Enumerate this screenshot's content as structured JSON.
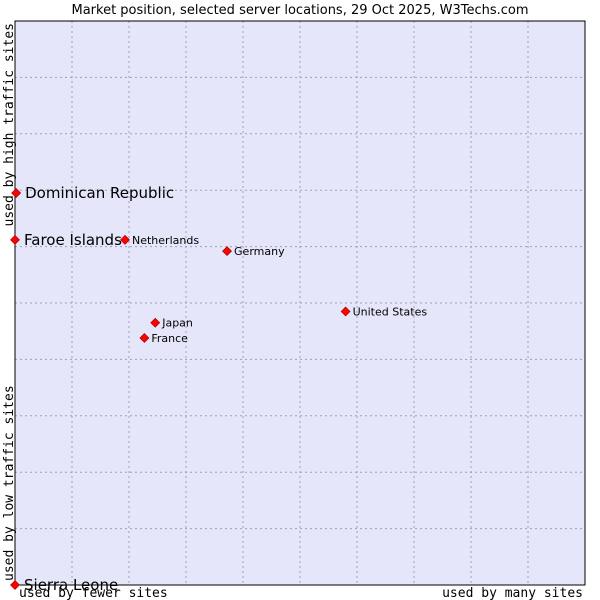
{
  "chart_data": {
    "type": "scatter",
    "title": "Market position, selected server locations, 29 Oct 2025, W3Techs.com",
    "xlabel_left": "used by fewer sites",
    "xlabel_right": "used by many sites",
    "ylabel_bottom": "used by low traffic sites",
    "ylabel_top": "used by high traffic sites",
    "xlim": [
      0,
      10
    ],
    "ylim": [
      0,
      10
    ],
    "grid": true,
    "point_color": "#ff0000",
    "plot_background": "#e6e6fa",
    "points": [
      {
        "name": "Dominican Republic",
        "x": 0.02,
        "y": 6.95,
        "size": "large"
      },
      {
        "name": "Faroe Islands",
        "x": 0.0,
        "y": 6.12,
        "size": "large"
      },
      {
        "name": "Netherlands",
        "x": 1.93,
        "y": 6.12,
        "size": "small"
      },
      {
        "name": "Germany",
        "x": 3.72,
        "y": 5.92,
        "size": "small"
      },
      {
        "name": "United States",
        "x": 5.8,
        "y": 4.85,
        "size": "small"
      },
      {
        "name": "Japan",
        "x": 2.46,
        "y": 4.65,
        "size": "small"
      },
      {
        "name": "France",
        "x": 2.27,
        "y": 4.38,
        "size": "small"
      }
    ],
    "points_bottom": [
      {
        "name": "Sierra Leone",
        "x": 0.0,
        "y": 0.0,
        "size": "large"
      }
    ]
  }
}
